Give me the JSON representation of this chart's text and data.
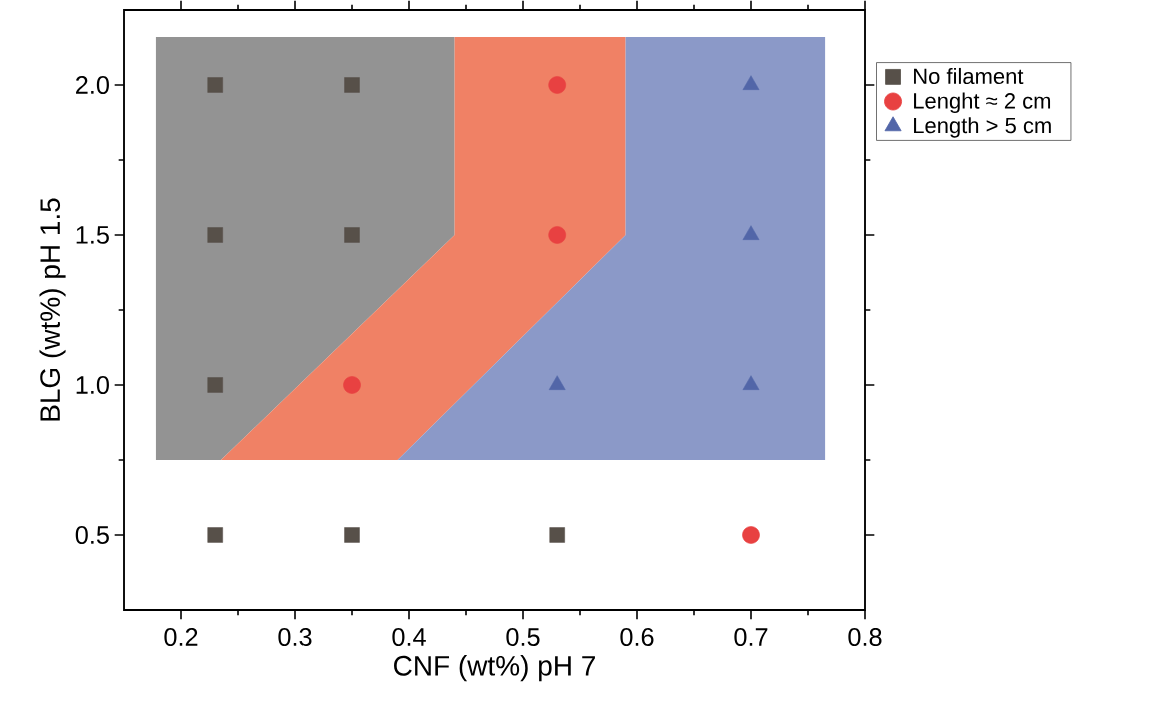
{
  "chart_data": {
    "type": "scatter",
    "xlabel": "CNF (wt%) pH 7",
    "ylabel": "BLG (wt%) pH 1.5",
    "xlim": [
      0.15,
      0.8
    ],
    "ylim": [
      0.25,
      2.25
    ],
    "xticks": [
      0.2,
      0.3,
      0.4,
      0.5,
      0.6,
      0.7,
      0.8
    ],
    "yticks": [
      0.5,
      {
        "value": 1,
        "label": "1.0"
      },
      1.5,
      {
        "value": 2,
        "label": "2.0"
      }
    ],
    "legend": "top right",
    "series": [
      {
        "type": "area",
        "color": "#939393",
        "x": [
          0.178,
          0.235,
          0.44,
          0.44,
          0.178
        ],
        "values": [
          0.75,
          0.75,
          1.5,
          2.16,
          2.16
        ]
      },
      {
        "type": "area",
        "color": "#f08165",
        "x": [
          0.235,
          0.39,
          0.59,
          0.59,
          0.44,
          0.44
        ],
        "values": [
          0.75,
          0.75,
          1.5,
          2.16,
          2.16,
          1.5
        ]
      },
      {
        "type": "area",
        "color": "#8b99c8",
        "x": [
          0.39,
          0.765,
          0.765,
          0.59,
          0.59
        ],
        "values": [
          0.75,
          0.75,
          2.16,
          2.16,
          1.5
        ]
      },
      {
        "name": "No filament",
        "color": "#575049",
        "marker": "square",
        "x": [
          0.23,
          0.35,
          0.23,
          0.35,
          0.23,
          0.23,
          0.35,
          0.53
        ],
        "values": [
          2.0,
          2.0,
          1.5,
          1.5,
          1.0,
          0.5,
          0.5,
          0.5
        ]
      },
      {
        "name": "Lenght ≈ 2 cm",
        "color": "#e84141",
        "marker": "circle",
        "x": [
          0.53,
          0.53,
          0.35,
          0.7
        ],
        "values": [
          2.0,
          1.5,
          1.0,
          0.5
        ]
      },
      {
        "name": "Length > 5 cm",
        "color": "#5266a8",
        "marker": "triangle",
        "x": [
          0.7,
          0.7,
          0.53,
          0.7
        ],
        "values": [
          2.0,
          1.5,
          1.0,
          1.0
        ]
      }
    ]
  }
}
